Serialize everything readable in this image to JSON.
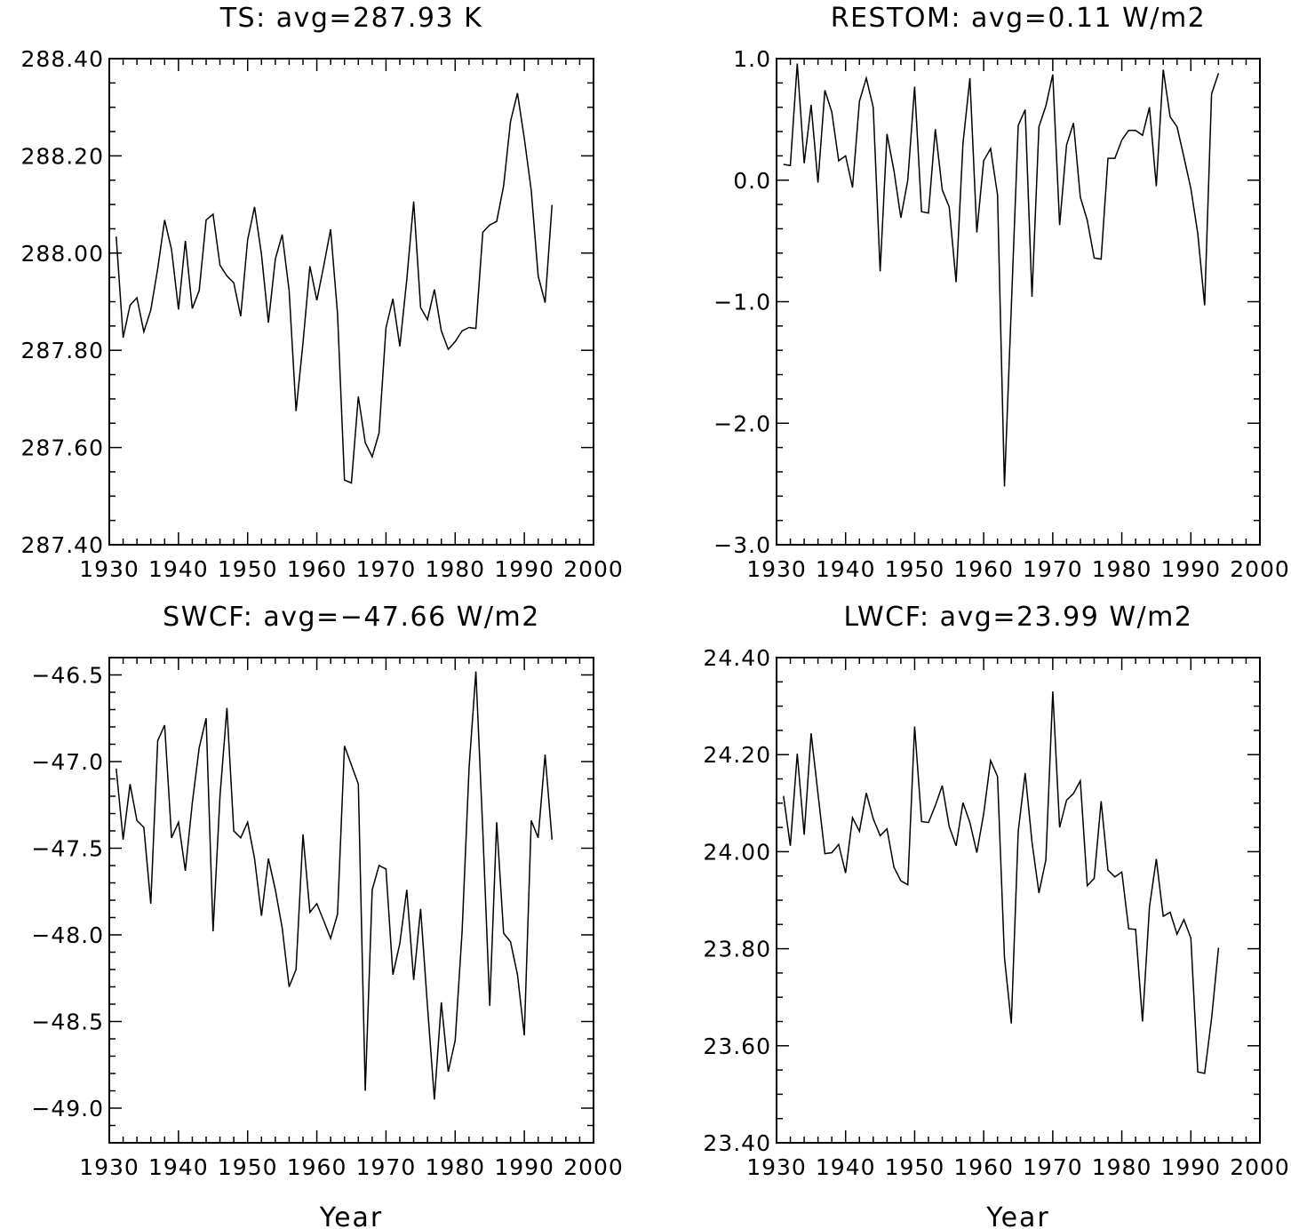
{
  "chart_data": [
    {
      "type": "line",
      "title": "TS: avg=287.93 K",
      "xlabel": "",
      "ylabel": "",
      "xlim": [
        1930,
        2000
      ],
      "ylim": [
        287.4,
        288.4
      ],
      "x_ticks": [
        1930,
        1940,
        1950,
        1960,
        1970,
        1980,
        1990,
        2000
      ],
      "x_tick_labels": [
        "1930",
        "1940",
        "1950",
        "1960",
        "1970",
        "1980",
        "1990",
        "2000"
      ],
      "y_ticks": [
        287.4,
        287.6,
        287.8,
        288.0,
        288.2,
        288.4
      ],
      "y_tick_labels": [
        "287.40",
        "287.60",
        "287.80",
        "288.00",
        "288.20",
        "288.40"
      ],
      "y_minor_step": 0.05,
      "x_start": 1931,
      "values": [
        288.034,
        287.826,
        287.893,
        287.908,
        287.838,
        287.883,
        287.968,
        288.068,
        288.007,
        287.884,
        288.025,
        287.886,
        287.923,
        288.068,
        288.08,
        287.975,
        287.953,
        287.939,
        287.87,
        288.027,
        288.095,
        287.997,
        287.857,
        287.988,
        288.038,
        287.923,
        287.675,
        287.815,
        287.973,
        287.903,
        287.974,
        288.049,
        287.875,
        287.533,
        287.527,
        287.705,
        287.61,
        287.581,
        287.63,
        287.846,
        287.906,
        287.808,
        287.945,
        288.106,
        287.888,
        287.863,
        287.925,
        287.84,
        287.802,
        287.818,
        287.84,
        287.847,
        287.845,
        288.043,
        288.058,
        288.065,
        288.138,
        288.271,
        288.329,
        288.236,
        288.129,
        287.953,
        287.898,
        288.099
      ]
    },
    {
      "type": "line",
      "title": "RESTOM: avg=0.11 W/m2",
      "xlabel": "",
      "ylabel": "",
      "xlim": [
        1930,
        2000
      ],
      "ylim": [
        -3.0,
        1.0
      ],
      "x_ticks": [
        1930,
        1940,
        1950,
        1960,
        1970,
        1980,
        1990,
        2000
      ],
      "x_tick_labels": [
        "1930",
        "1940",
        "1950",
        "1960",
        "1970",
        "1980",
        "1990",
        "2000"
      ],
      "y_ticks": [
        -3.0,
        -2.0,
        -1.0,
        0.0,
        1.0
      ],
      "y_tick_labels": [
        "−3.0",
        "−2.0",
        "−1.0",
        "0.0",
        "1.0"
      ],
      "y_minor_step": 0.2,
      "x_start": 1931,
      "values": [
        0.13,
        0.12,
        0.96,
        0.14,
        0.62,
        -0.02,
        0.74,
        0.56,
        0.16,
        0.2,
        -0.06,
        0.65,
        0.84,
        0.6,
        -0.75,
        0.38,
        0.08,
        -0.31,
        0.0,
        0.77,
        -0.26,
        -0.27,
        0.42,
        -0.08,
        -0.22,
        -0.84,
        0.3,
        0.84,
        -0.43,
        0.16,
        0.26,
        -0.12,
        -2.52,
        -1.05,
        0.45,
        0.58,
        -0.96,
        0.44,
        0.61,
        0.87,
        -0.37,
        0.29,
        0.47,
        -0.14,
        -0.33,
        -0.64,
        -0.65,
        0.18,
        0.18,
        0.33,
        0.41,
        0.41,
        0.37,
        0.6,
        -0.05,
        0.91,
        0.52,
        0.44,
        0.19,
        -0.07,
        -0.44,
        -1.03,
        0.71,
        0.88
      ]
    },
    {
      "type": "line",
      "title": "SWCF: avg=−47.66 W/m2",
      "xlabel": "Year",
      "ylabel": "",
      "xlim": [
        1930,
        2000
      ],
      "ylim": [
        -49.2,
        -46.4
      ],
      "x_ticks": [
        1930,
        1940,
        1950,
        1960,
        1970,
        1980,
        1990,
        2000
      ],
      "x_tick_labels": [
        "1930",
        "1940",
        "1950",
        "1960",
        "1970",
        "1980",
        "1990",
        "2000"
      ],
      "y_ticks": [
        -49.0,
        -48.5,
        -48.0,
        -47.5,
        -47.0,
        -46.5
      ],
      "y_tick_labels": [
        "−49.0",
        "−48.5",
        "−48.0",
        "−47.5",
        "−47.0",
        "−46.5"
      ],
      "y_minor_step": 0.1,
      "x_start": 1931,
      "values": [
        -47.04,
        -47.45,
        -47.13,
        -47.34,
        -47.38,
        -47.82,
        -46.88,
        -46.79,
        -47.44,
        -47.35,
        -47.63,
        -47.24,
        -46.92,
        -46.75,
        -47.98,
        -47.2,
        -46.69,
        -47.4,
        -47.44,
        -47.35,
        -47.56,
        -47.89,
        -47.56,
        -47.74,
        -47.96,
        -48.3,
        -48.2,
        -47.42,
        -47.87,
        -47.82,
        -47.92,
        -48.02,
        -47.88,
        -46.91,
        -47.02,
        -47.13,
        -48.9,
        -47.74,
        -47.6,
        -47.62,
        -48.23,
        -48.05,
        -47.74,
        -48.26,
        -47.85,
        -48.41,
        -48.95,
        -48.39,
        -48.79,
        -48.61,
        -47.98,
        -47.04,
        -46.48,
        -47.4,
        -48.41,
        -47.35,
        -47.99,
        -48.04,
        -48.23,
        -48.58,
        -47.34,
        -47.44,
        -46.96,
        -47.45
      ]
    },
    {
      "type": "line",
      "title": "LWCF: avg=23.99 W/m2",
      "xlabel": "Year",
      "ylabel": "",
      "xlim": [
        1930,
        2000
      ],
      "ylim": [
        23.4,
        24.4
      ],
      "x_ticks": [
        1930,
        1940,
        1950,
        1960,
        1970,
        1980,
        1990,
        2000
      ],
      "x_tick_labels": [
        "1930",
        "1940",
        "1950",
        "1960",
        "1970",
        "1980",
        "1990",
        "2000"
      ],
      "y_ticks": [
        23.4,
        23.6,
        23.8,
        24.0,
        24.2,
        24.4
      ],
      "y_tick_labels": [
        "23.40",
        "23.60",
        "23.80",
        "24.00",
        "24.20",
        "24.40"
      ],
      "y_minor_step": 0.05,
      "x_start": 1931,
      "values": [
        24.115,
        24.012,
        24.202,
        24.035,
        24.244,
        24.12,
        23.996,
        23.998,
        24.015,
        23.956,
        24.07,
        24.042,
        24.121,
        24.068,
        24.033,
        24.047,
        23.968,
        23.94,
        23.932,
        24.258,
        24.062,
        24.06,
        24.095,
        24.136,
        24.052,
        24.012,
        24.101,
        24.06,
        23.998,
        24.078,
        24.188,
        24.155,
        23.782,
        23.646,
        24.042,
        24.162,
        24.02,
        23.915,
        23.983,
        24.33,
        24.05,
        24.106,
        24.12,
        24.146,
        23.93,
        23.945,
        24.104,
        23.962,
        23.948,
        23.958,
        23.841,
        23.84,
        23.65,
        23.886,
        23.985,
        23.867,
        23.875,
        23.83,
        23.86,
        23.822,
        23.546,
        23.543,
        23.656,
        23.802
      ]
    }
  ]
}
